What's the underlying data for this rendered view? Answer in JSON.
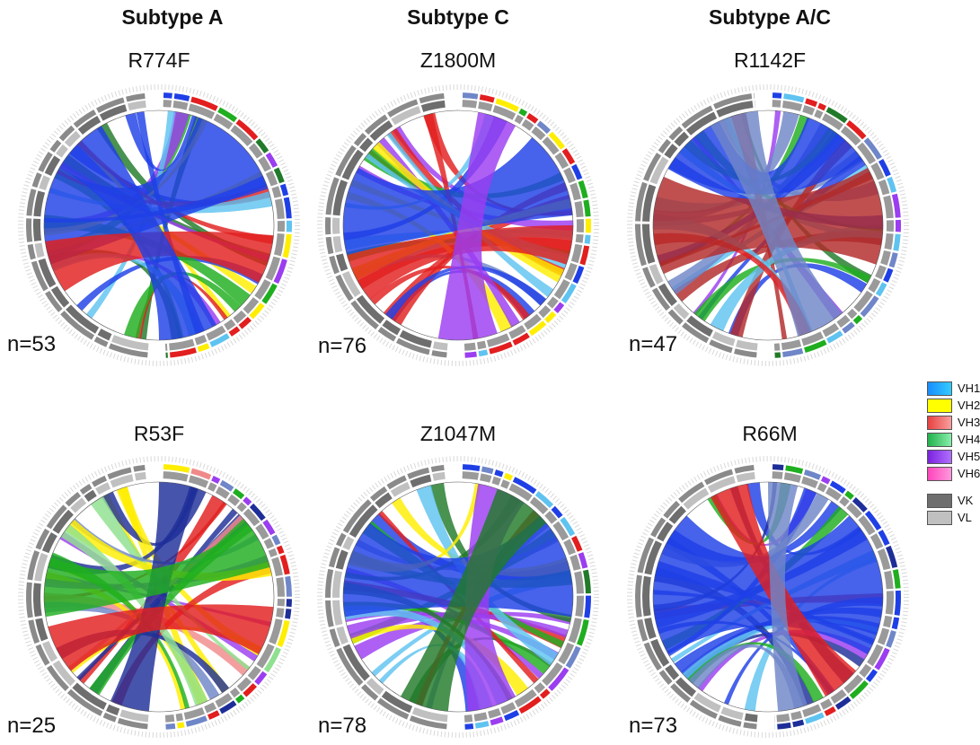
{
  "columns": [
    "Subtype A",
    "Subtype C",
    "Subtype A/C"
  ],
  "panels": [
    {
      "id": "R774F",
      "title": "R774F",
      "n": "n=53"
    },
    {
      "id": "Z1800M",
      "title": "Z1800M",
      "n": "n=76"
    },
    {
      "id": "R1142F",
      "title": "R1142F",
      "n": "n=47"
    },
    {
      "id": "R53F",
      "title": "R53F",
      "n": "n=25"
    },
    {
      "id": "Z1047M",
      "title": "Z1047M",
      "n": "n=78"
    },
    {
      "id": "R66M",
      "title": "R66M",
      "n": "n=73"
    }
  ],
  "legend": {
    "heavy": [
      {
        "label": "VH1",
        "color": "#1a8cff"
      },
      {
        "label": "VH2",
        "color": "#ffff00"
      },
      {
        "label": "VH3",
        "color": "#f06060"
      },
      {
        "label": "VH4",
        "color": "#33cc66"
      },
      {
        "label": "VH5",
        "color": "#9933ee"
      },
      {
        "label": "VH6",
        "color": "#ff66cc"
      }
    ],
    "light": [
      {
        "label": "VK",
        "color": "#6e6e6e"
      },
      {
        "label": "VL",
        "color": "#c0c0c0"
      }
    ]
  },
  "colors": {
    "blue": "#1f3fe6",
    "lightblue": "#5fc3f0",
    "steel": "#6f86c8",
    "red": "#e21e1e",
    "darkred": "#b22a2a",
    "pink": "#f08a8a",
    "green": "#1fae1f",
    "darkgreen": "#217a2a",
    "lightgreen": "#8fe08f",
    "purple": "#9b3df0",
    "yellow": "#ffee00",
    "navy": "#1e2e98"
  }
}
